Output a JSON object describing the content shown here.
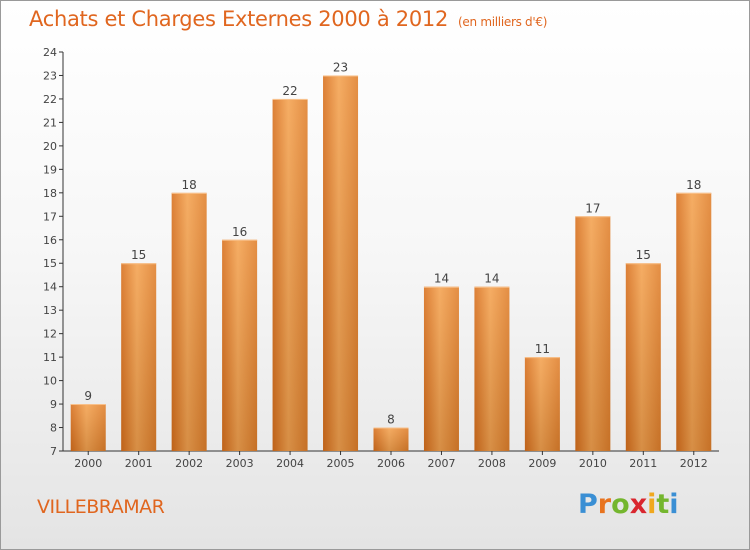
{
  "header": {
    "title": "Achats et Charges Externes 2000 à 2012",
    "subtitle": "(en milliers d'€)"
  },
  "footer": {
    "city": "VILLEBRAMAR",
    "logo_letters": [
      "P",
      "r",
      "o",
      "x",
      "i",
      "t",
      "i"
    ],
    "logo_colors": [
      "#3a8fd4",
      "#e8731e",
      "#74b62e",
      "#d9262e",
      "#f0a81e",
      "#74b62e",
      "#3a8fd4"
    ]
  },
  "chart_data": {
    "type": "bar",
    "categories": [
      "2000",
      "2001",
      "2002",
      "2003",
      "2004",
      "2005",
      "2006",
      "2007",
      "2008",
      "2009",
      "2010",
      "2011",
      "2012"
    ],
    "values": [
      9,
      15,
      18,
      16,
      22,
      23,
      8,
      14,
      14,
      11,
      17,
      15,
      18
    ],
    "data_labels": [
      "9",
      "15",
      "18",
      "16",
      "22",
      "23",
      "8",
      "14",
      "14",
      "11",
      "17",
      "15",
      "18"
    ],
    "title": "Achats et Charges Externes 2000 à 2012",
    "xlabel": "",
    "ylabel": "",
    "ylim": [
      7,
      24
    ],
    "yticks": [
      "7",
      "8",
      "9",
      "10",
      "11",
      "12",
      "13",
      "14",
      "15",
      "16",
      "17",
      "18",
      "19",
      "20",
      "21",
      "22",
      "23",
      "24"
    ],
    "grid": false,
    "bar_color": "#e8842f",
    "bar_color_light": "#f6a551"
  }
}
